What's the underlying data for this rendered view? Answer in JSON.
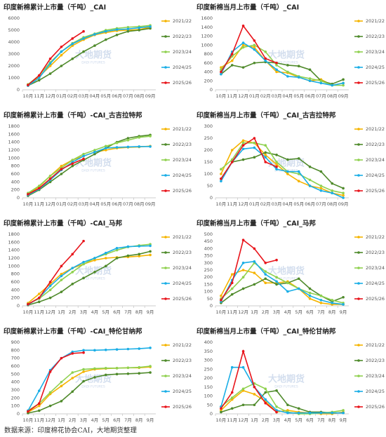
{
  "chart_data": [
    {
      "type": "line",
      "title": "印度新棉累计上市量（千吨）_CAI",
      "categories": [
        "10月",
        "11月",
        "12月",
        "01月",
        "02月",
        "03月",
        "04月",
        "05月",
        "06月",
        "07月",
        "08月",
        "09月"
      ],
      "ylim": [
        0,
        6000
      ],
      "yticks": [
        0,
        1000,
        2000,
        3000,
        4000,
        5000,
        6000
      ],
      "grid": false,
      "legend": "right",
      "series": [
        {
          "name": "2021/22",
          "color": "#f5b400",
          "values": [
            450,
            1100,
            2000,
            2900,
            3700,
            4200,
            4600,
            4800,
            4950,
            5000,
            5050,
            5250
          ]
        },
        {
          "name": "2022/23",
          "color": "#4f8a2b",
          "values": [
            350,
            800,
            1350,
            2000,
            2600,
            3200,
            3700,
            4200,
            4600,
            4900,
            5000,
            5150
          ]
        },
        {
          "name": "2023/24",
          "color": "#8fd14f",
          "values": [
            450,
            1200,
            2300,
            3200,
            3900,
            4400,
            4700,
            5000,
            5150,
            5250,
            5300,
            5400
          ]
        },
        {
          "name": "2024/25",
          "color": "#1aaee6",
          "values": [
            350,
            1000,
            2200,
            3200,
            3850,
            4300,
            4650,
            4900,
            5050,
            5100,
            5200,
            5300
          ]
        },
        {
          "name": "2025/26",
          "color": "#e8141b",
          "values": [
            400,
            1200,
            2600,
            3600,
            4300,
            4900,
            null,
            null,
            null,
            null,
            null,
            null
          ]
        }
      ]
    },
    {
      "type": "line",
      "title": "印度新棉当月上市量（千吨）_CAI",
      "categories": [
        "10月",
        "11月",
        "12月",
        "01月",
        "02月",
        "03月",
        "04月",
        "05月",
        "06月",
        "07月",
        "08月",
        "09月"
      ],
      "ylim": [
        0,
        1600
      ],
      "yticks": [
        0,
        200,
        400,
        600,
        800,
        1000,
        1200,
        1400,
        1600
      ],
      "grid": false,
      "legend": "right",
      "series": [
        {
          "name": "2021/22",
          "color": "#f5b400",
          "values": [
            500,
            650,
            1000,
            950,
            650,
            400,
            380,
            280,
            200,
            230,
            100,
            150
          ]
        },
        {
          "name": "2022/23",
          "color": "#4f8a2b",
          "values": [
            350,
            550,
            500,
            600,
            620,
            600,
            550,
            530,
            450,
            200,
            130,
            230
          ]
        },
        {
          "name": "2023/24",
          "color": "#8fd14f",
          "values": [
            450,
            750,
            950,
            1000,
            850,
            550,
            400,
            300,
            250,
            200,
            100,
            100
          ]
        },
        {
          "name": "2024/25",
          "color": "#1aaee6",
          "values": [
            350,
            850,
            1050,
            900,
            650,
            450,
            300,
            280,
            200,
            150,
            100,
            150
          ]
        },
        {
          "name": "2025/26",
          "color": "#e8141b",
          "values": [
            400,
            800,
            1430,
            1100,
            700,
            600,
            null,
            null,
            null,
            null,
            null,
            null
          ]
        }
      ]
    },
    {
      "type": "line",
      "title": "印度新棉累计上市量（千吨）-CAI_古吉拉特邦",
      "categories": [
        "10月",
        "11月",
        "12月",
        "01月",
        "02月",
        "03月",
        "04月",
        "05月",
        "06月",
        "07月",
        "08月",
        "09月"
      ],
      "ylim": [
        0,
        1800
      ],
      "yticks": [
        0,
        200,
        400,
        600,
        800,
        1000,
        1200,
        1400,
        1600,
        1800
      ],
      "grid": false,
      "legend": "right",
      "series": [
        {
          "name": "2021/22",
          "color": "#f5b400",
          "values": [
            100,
            280,
            550,
            800,
            950,
            1050,
            1150,
            1200,
            1250,
            1270,
            1280,
            1300
          ]
        },
        {
          "name": "2022/23",
          "color": "#4f8a2b",
          "values": [
            50,
            200,
            400,
            600,
            800,
            950,
            1100,
            1250,
            1400,
            1500,
            1550,
            1580
          ]
        },
        {
          "name": "2023/24",
          "color": "#8fd14f",
          "values": [
            120,
            300,
            550,
            750,
            950,
            1100,
            1200,
            1300,
            1380,
            1450,
            1520,
            1550
          ]
        },
        {
          "name": "2024/25",
          "color": "#1aaee6",
          "values": [
            70,
            220,
            450,
            700,
            900,
            1050,
            1150,
            1250,
            1270,
            1280,
            1290,
            1290
          ]
        },
        {
          "name": "2025/26",
          "color": "#e8141b",
          "values": [
            90,
            240,
            480,
            720,
            860,
            980,
            null,
            null,
            null,
            null,
            null,
            null
          ]
        }
      ]
    },
    {
      "type": "line",
      "title": "印度新棉当月上市量（千吨）_CAI_古吉拉特邦",
      "categories": [
        "10月",
        "11月",
        "12月",
        "01月",
        "02月",
        "03月",
        "04月",
        "05月",
        "06月",
        "07月",
        "08月",
        "09月"
      ],
      "ylim": [
        0,
        300
      ],
      "yticks": [
        0,
        50,
        100,
        150,
        200,
        250,
        300
      ],
      "grid": false,
      "legend": "right",
      "series": [
        {
          "name": "2021/22",
          "color": "#f5b400",
          "values": [
            100,
            200,
            240,
            230,
            180,
            140,
            100,
            70,
            50,
            40,
            20,
            10
          ]
        },
        {
          "name": "2022/23",
          "color": "#4f8a2b",
          "values": [
            80,
            150,
            160,
            170,
            190,
            180,
            160,
            165,
            130,
            110,
            60,
            40
          ]
        },
        {
          "name": "2023/24",
          "color": "#8fd14f",
          "values": [
            120,
            160,
            230,
            230,
            220,
            150,
            110,
            100,
            75,
            50,
            30,
            20
          ]
        },
        {
          "name": "2024/25",
          "color": "#1aaee6",
          "values": [
            70,
            150,
            205,
            210,
            170,
            120,
            110,
            110,
            50,
            30,
            20,
            0
          ]
        },
        {
          "name": "2025/26",
          "color": "#e8141b",
          "values": [
            80,
            150,
            220,
            250,
            150,
            130,
            null,
            null,
            null,
            null,
            null,
            null
          ]
        }
      ]
    },
    {
      "type": "line",
      "title": "印度新棉累计上市量（千吨）-CAI_马邦",
      "categories": [
        "10月",
        "11月",
        "12月",
        "1月",
        "2月",
        "3月",
        "4月",
        "5月",
        "6月",
        "7月",
        "8月",
        "9月"
      ],
      "ylim": [
        0,
        1800
      ],
      "yticks": [
        0,
        200,
        400,
        600,
        800,
        1000,
        1200,
        1400,
        1600,
        1800
      ],
      "grid": false,
      "legend": "right",
      "series": [
        {
          "name": "2021/22",
          "color": "#f5b400",
          "values": [
            70,
            300,
            550,
            800,
            950,
            1050,
            1150,
            1200,
            1220,
            1230,
            1250,
            1280
          ]
        },
        {
          "name": "2022/23",
          "color": "#4f8a2b",
          "values": [
            20,
            100,
            200,
            350,
            550,
            700,
            850,
            1000,
            1200,
            1260,
            1300,
            1370
          ]
        },
        {
          "name": "2023/24",
          "color": "#8fd14f",
          "values": [
            50,
            180,
            400,
            650,
            850,
            1050,
            1200,
            1300,
            1400,
            1480,
            1520,
            1550
          ]
        },
        {
          "name": "2024/25",
          "color": "#1aaee6",
          "values": [
            30,
            200,
            500,
            750,
            950,
            1100,
            1200,
            1330,
            1450,
            1490,
            1500,
            1510
          ]
        },
        {
          "name": "2025/26",
          "color": "#e8141b",
          "values": [
            40,
            200,
            600,
            1000,
            1300,
            1630,
            null,
            null,
            null,
            null,
            null,
            null
          ]
        }
      ]
    },
    {
      "type": "line",
      "title": "印度新棉当月上市量（千吨）_CAI_马邦",
      "categories": [
        "10月",
        "11月",
        "12月",
        "1月",
        "2月",
        "3月",
        "4月",
        "5月",
        "6月",
        "7月",
        "8月",
        "9月"
      ],
      "ylim": [
        0,
        500
      ],
      "yticks": [
        0,
        50,
        100,
        150,
        200,
        250,
        300,
        350,
        400,
        450,
        500
      ],
      "grid": false,
      "legend": "right",
      "series": [
        {
          "name": "2021/22",
          "color": "#f5b400",
          "values": [
            70,
            220,
            250,
            230,
            160,
            160,
            170,
            120,
            50,
            20,
            10,
            10
          ]
        },
        {
          "name": "2022/23",
          "color": "#4f8a2b",
          "values": [
            20,
            80,
            120,
            150,
            190,
            150,
            160,
            190,
            120,
            70,
            30,
            60
          ]
        },
        {
          "name": "2023/24",
          "color": "#8fd14f",
          "values": [
            50,
            120,
            200,
            300,
            240,
            200,
            160,
            120,
            90,
            70,
            40,
            20
          ]
        },
        {
          "name": "2024/25",
          "color": "#1aaee6",
          "values": [
            30,
            180,
            300,
            310,
            220,
            170,
            100,
            120,
            70,
            40,
            20,
            10
          ]
        },
        {
          "name": "2025/26",
          "color": "#e8141b",
          "values": [
            40,
            160,
            460,
            400,
            300,
            320,
            null,
            null,
            null,
            null,
            null,
            null
          ]
        }
      ]
    },
    {
      "type": "line",
      "title": "印度新棉累计上市量（千吨）-CAI_特伦甘纳邦",
      "categories": [
        "10月",
        "11月",
        "12月",
        "1月",
        "2月",
        "3月",
        "4月",
        "5月",
        "6月",
        "7月",
        "8月",
        "9月"
      ],
      "ylim": [
        0,
        900
      ],
      "yticks": [
        0,
        100,
        200,
        300,
        400,
        500,
        600,
        700,
        800,
        900
      ],
      "grid": false,
      "legend": "right",
      "series": [
        {
          "name": "2021/22",
          "color": "#f5b400",
          "values": [
            20,
            100,
            250,
            350,
            450,
            530,
            560,
            570,
            575,
            580,
            580,
            590
          ]
        },
        {
          "name": "2022/23",
          "color": "#4f8a2b",
          "values": [
            10,
            40,
            100,
            160,
            280,
            410,
            460,
            490,
            500,
            505,
            510,
            520
          ]
        },
        {
          "name": "2023/24",
          "color": "#8fd14f",
          "values": [
            40,
            130,
            270,
            400,
            520,
            560,
            570,
            575,
            575,
            580,
            585,
            600
          ]
        },
        {
          "name": "2024/25",
          "color": "#1aaee6",
          "values": [
            40,
            290,
            550,
            700,
            780,
            800,
            800,
            805,
            810,
            815,
            820,
            830
          ]
        },
        {
          "name": "2025/26",
          "color": "#e8141b",
          "values": [
            30,
            130,
            530,
            700,
            760,
            770,
            null,
            null,
            null,
            null,
            null,
            null
          ]
        }
      ]
    },
    {
      "type": "line",
      "title": "印度新棉当月上市量（千吨）_CAI_特伦甘纳邦",
      "categories": [
        "10月",
        "11月",
        "12月",
        "1月",
        "2月",
        "3月",
        "4月",
        "5月",
        "6月",
        "7月",
        "8月",
        "9月"
      ],
      "ylim": [
        0,
        400
      ],
      "yticks": [
        0,
        50,
        100,
        150,
        200,
        250,
        300,
        350,
        400
      ],
      "grid": false,
      "legend": "right",
      "series": [
        {
          "name": "2021/22",
          "color": "#f5b400",
          "values": [
            20,
            80,
            130,
            110,
            70,
            10,
            20,
            10,
            5,
            0,
            0,
            10
          ]
        },
        {
          "name": "2022/23",
          "color": "#4f8a2b",
          "values": [
            10,
            30,
            50,
            50,
            120,
            130,
            50,
            30,
            10,
            10,
            5,
            5
          ]
        },
        {
          "name": "2023/24",
          "color": "#8fd14f",
          "values": [
            40,
            90,
            140,
            170,
            140,
            40,
            10,
            0,
            0,
            5,
            10,
            20
          ]
        },
        {
          "name": "2024/25",
          "color": "#1aaee6",
          "values": [
            40,
            260,
            260,
            150,
            80,
            20,
            5,
            5,
            5,
            5,
            5,
            5
          ]
        },
        {
          "name": "2025/26",
          "color": "#e8141b",
          "values": [
            30,
            120,
            350,
            150,
            60,
            10,
            null,
            null,
            null,
            null,
            null,
            null
          ]
        }
      ]
    }
  ],
  "watermark": "大地期货",
  "watermark_sub": "DADI FUTURES",
  "source": "数据来源：印度棉花协会CAI，大地期货整理"
}
